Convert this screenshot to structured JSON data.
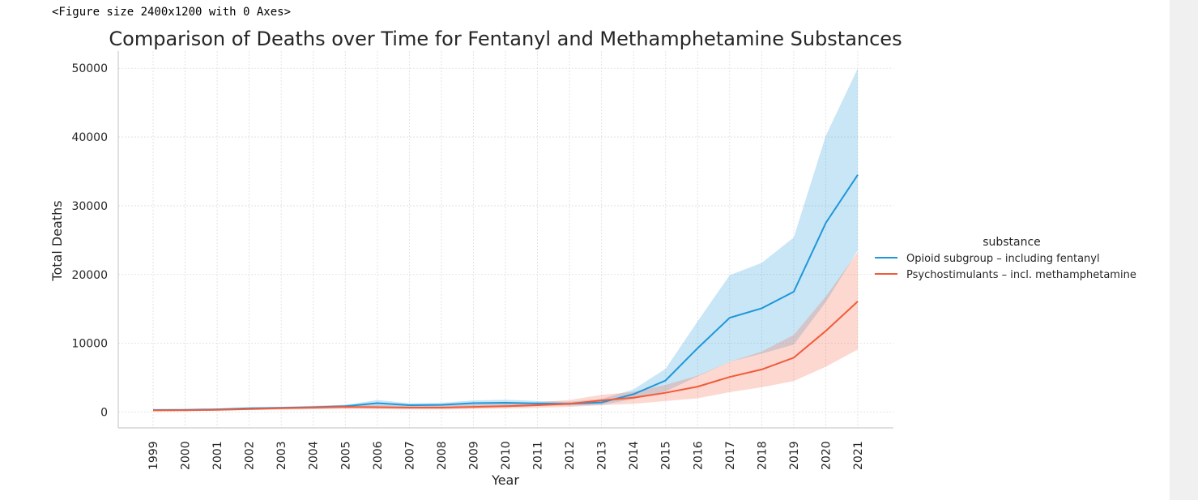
{
  "output": {
    "figure_repr": "<Figure size 2400x1200 with 0 Axes>"
  },
  "chart_data": {
    "type": "line",
    "title": "Comparison of Deaths over Time for Fentanyl and Methamphetamine Substances",
    "xlabel": "Year",
    "ylabel": "Total Deaths",
    "x": [
      "1999",
      "2000",
      "2001",
      "2002",
      "2003",
      "2004",
      "2005",
      "2006",
      "2007",
      "2008",
      "2009",
      "2010",
      "2011",
      "2012",
      "2013",
      "2014",
      "2015",
      "2016",
      "2017",
      "2018",
      "2019",
      "2020",
      "2021"
    ],
    "ylim": [
      -2300,
      52500
    ],
    "yticks": [
      0,
      10000,
      20000,
      30000,
      40000,
      50000
    ],
    "grid": true,
    "legend": {
      "title": "substance",
      "placement": "center-right outside"
    },
    "series": [
      {
        "name": "Opioid subgroup – including fentanyl",
        "color": "#1f97d9",
        "values": [
          300,
          330,
          400,
          550,
          620,
          700,
          850,
          1300,
          1000,
          1050,
          1300,
          1350,
          1250,
          1200,
          1400,
          2600,
          4600,
          9300,
          13700,
          15100,
          17500,
          27500,
          34500
        ],
        "ci_lower": [
          250,
          280,
          320,
          420,
          500,
          560,
          650,
          750,
          700,
          700,
          800,
          850,
          900,
          950,
          1050,
          1900,
          3000,
          5200,
          7300,
          8500,
          9800,
          16000,
          23500
        ],
        "ci_upper": [
          350,
          390,
          480,
          650,
          760,
          860,
          1050,
          1750,
          1300,
          1350,
          1700,
          1800,
          1600,
          1500,
          1900,
          3300,
          6300,
          13200,
          19900,
          21700,
          25400,
          40200,
          50000
        ]
      },
      {
        "name": "Psychostimulants – incl. methamphetamine",
        "color": "#f15a3a",
        "values": [
          250,
          270,
          320,
          450,
          550,
          650,
          750,
          700,
          650,
          650,
          750,
          850,
          1000,
          1200,
          1700,
          2100,
          2800,
          3700,
          5100,
          6200,
          7900,
          11800,
          16100
        ],
        "ci_lower": [
          150,
          160,
          200,
          280,
          350,
          400,
          450,
          420,
          390,
          380,
          450,
          520,
          620,
          750,
          1000,
          1200,
          1600,
          2000,
          2900,
          3600,
          4500,
          6600,
          9100
        ],
        "ci_upper": [
          380,
          400,
          470,
          640,
          760,
          900,
          1050,
          1000,
          920,
          940,
          1080,
          1200,
          1420,
          1750,
          2500,
          2950,
          3950,
          5300,
          7300,
          8800,
          11200,
          16800,
          23300
        ]
      }
    ]
  }
}
